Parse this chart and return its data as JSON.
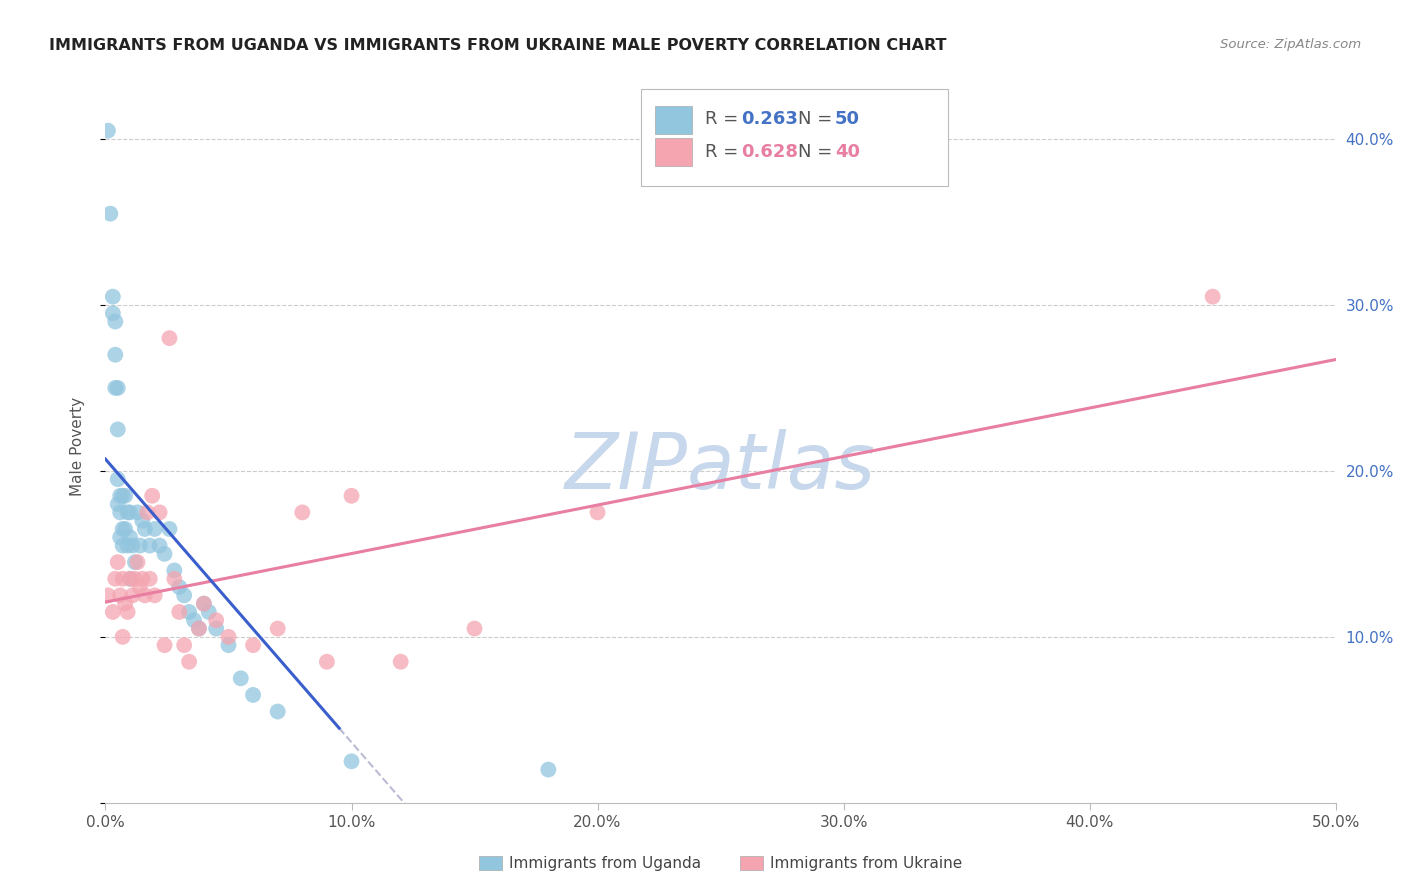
{
  "title": "IMMIGRANTS FROM UGANDA VS IMMIGRANTS FROM UKRAINE MALE POVERTY CORRELATION CHART",
  "source": "Source: ZipAtlas.com",
  "ylabel": "Male Poverty",
  "xlim": [
    0,
    0.5
  ],
  "ylim": [
    0,
    0.43
  ],
  "xticks": [
    0.0,
    0.1,
    0.2,
    0.3,
    0.4,
    0.5
  ],
  "xticklabels": [
    "0.0%",
    "10.0%",
    "20.0%",
    "30.0%",
    "40.0%",
    "50.0%"
  ],
  "right_yticks": [
    0.1,
    0.2,
    0.3,
    0.4
  ],
  "right_yticklabels": [
    "10.0%",
    "20.0%",
    "30.0%",
    "40.0%"
  ],
  "legend_label1": "Immigrants from Uganda",
  "legend_label2": "Immigrants from Ukraine",
  "R1": "0.263",
  "N1": "50",
  "R2": "0.628",
  "N2": "40",
  "uganda_color": "#92C5DE",
  "ukraine_color": "#F4A5B0",
  "uganda_line_color": "#3A5FCD",
  "ukraine_line_color": "#E87EA1",
  "dash_color": "#AAAACC",
  "watermark": "ZIPatlas",
  "watermark_color": "#C8D8EC",
  "uganda_x": [
    0.001,
    0.002,
    0.003,
    0.003,
    0.004,
    0.004,
    0.004,
    0.005,
    0.005,
    0.005,
    0.005,
    0.006,
    0.006,
    0.006,
    0.007,
    0.007,
    0.007,
    0.008,
    0.008,
    0.009,
    0.009,
    0.01,
    0.01,
    0.01,
    0.011,
    0.012,
    0.013,
    0.014,
    0.015,
    0.016,
    0.018,
    0.02,
    0.022,
    0.024,
    0.026,
    0.028,
    0.03,
    0.032,
    0.034,
    0.036,
    0.038,
    0.04,
    0.042,
    0.045,
    0.05,
    0.055,
    0.06,
    0.07,
    0.1,
    0.18
  ],
  "uganda_y": [
    0.405,
    0.355,
    0.305,
    0.295,
    0.29,
    0.27,
    0.25,
    0.25,
    0.225,
    0.195,
    0.18,
    0.185,
    0.175,
    0.16,
    0.185,
    0.165,
    0.155,
    0.185,
    0.165,
    0.175,
    0.155,
    0.175,
    0.16,
    0.135,
    0.155,
    0.145,
    0.175,
    0.155,
    0.17,
    0.165,
    0.155,
    0.165,
    0.155,
    0.15,
    0.165,
    0.14,
    0.13,
    0.125,
    0.115,
    0.11,
    0.105,
    0.12,
    0.115,
    0.105,
    0.095,
    0.075,
    0.065,
    0.055,
    0.025,
    0.02
  ],
  "ukraine_x": [
    0.001,
    0.003,
    0.004,
    0.005,
    0.006,
    0.007,
    0.007,
    0.008,
    0.009,
    0.01,
    0.011,
    0.012,
    0.013,
    0.014,
    0.015,
    0.016,
    0.017,
    0.018,
    0.019,
    0.02,
    0.022,
    0.024,
    0.026,
    0.028,
    0.03,
    0.032,
    0.034,
    0.038,
    0.04,
    0.045,
    0.05,
    0.06,
    0.07,
    0.08,
    0.09,
    0.1,
    0.12,
    0.15,
    0.2,
    0.45
  ],
  "ukraine_y": [
    0.125,
    0.115,
    0.135,
    0.145,
    0.125,
    0.135,
    0.1,
    0.12,
    0.115,
    0.135,
    0.125,
    0.135,
    0.145,
    0.13,
    0.135,
    0.125,
    0.175,
    0.135,
    0.185,
    0.125,
    0.175,
    0.095,
    0.28,
    0.135,
    0.115,
    0.095,
    0.085,
    0.105,
    0.12,
    0.11,
    0.1,
    0.095,
    0.105,
    0.175,
    0.085,
    0.185,
    0.085,
    0.105,
    0.175,
    0.305
  ],
  "uganda_line_x_end": 0.095,
  "ukraine_line_x_start": 0.0,
  "ukraine_line_x_end": 0.5
}
